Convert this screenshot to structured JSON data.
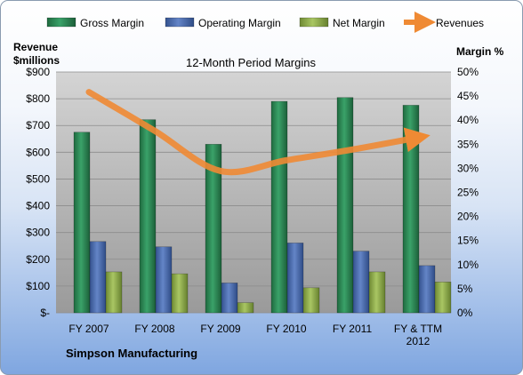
{
  "chart_data": {
    "type": "bar",
    "title": "12-Month Period Margins",
    "left_axis_title": [
      "Revenue",
      "$millions"
    ],
    "right_axis_title": "Margin %",
    "categories": [
      "FY 2007",
      "FY 2008",
      "FY 2009",
      "FY 2010",
      "FY 2011",
      "FY & TTM 2012"
    ],
    "left_ticks": [
      "$-",
      "$100",
      "$200",
      "$300",
      "$400",
      "$500",
      "$600",
      "$700",
      "$800",
      "$900"
    ],
    "right_ticks": [
      "0%",
      "5%",
      "10%",
      "15%",
      "20%",
      "25%",
      "30%",
      "35%",
      "40%",
      "45%",
      "50%"
    ],
    "ylim_left": [
      0,
      900
    ],
    "ylim_right": [
      0,
      50
    ],
    "series": [
      {
        "name": "Gross Margin",
        "axis": "right",
        "kind": "bar",
        "color": "#2e8b57",
        "values": [
          37.5,
          40.1,
          35.0,
          43.9,
          44.7,
          43.1
        ]
      },
      {
        "name": "Operating Margin",
        "axis": "right",
        "kind": "bar",
        "color": "#4f6fb3",
        "values": [
          14.8,
          13.7,
          6.2,
          14.5,
          12.8,
          9.8
        ]
      },
      {
        "name": "Net Margin",
        "axis": "right",
        "kind": "bar",
        "color": "#8fae4a",
        "values": [
          8.5,
          8.1,
          2.1,
          5.2,
          8.5,
          6.4
        ]
      },
      {
        "name": "Revenues",
        "axis": "left",
        "kind": "line",
        "color": "#ef8a34",
        "values": [
          825,
          680,
          530,
          570,
          610,
          655
        ]
      }
    ],
    "grid": true,
    "legend_position": "top",
    "footer": "Simpson Manufacturing"
  }
}
